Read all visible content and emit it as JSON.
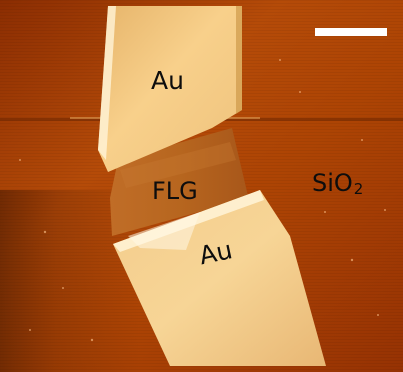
{
  "image": {
    "labels": {
      "au_top": "Au",
      "flg": "FLG",
      "au_bottom": "Au",
      "sio2_main": "SiO",
      "sio2_sub": "2"
    },
    "colors": {
      "substrate": "#a83f04",
      "substrate_dark": "#5e2202",
      "flg_flake": "#b7661f",
      "gold_electrode": "#f8d08b",
      "gold_highlight": "#fff4d8",
      "scale_bar": "#ffffff",
      "label_text": "#0d0d0d"
    }
  }
}
